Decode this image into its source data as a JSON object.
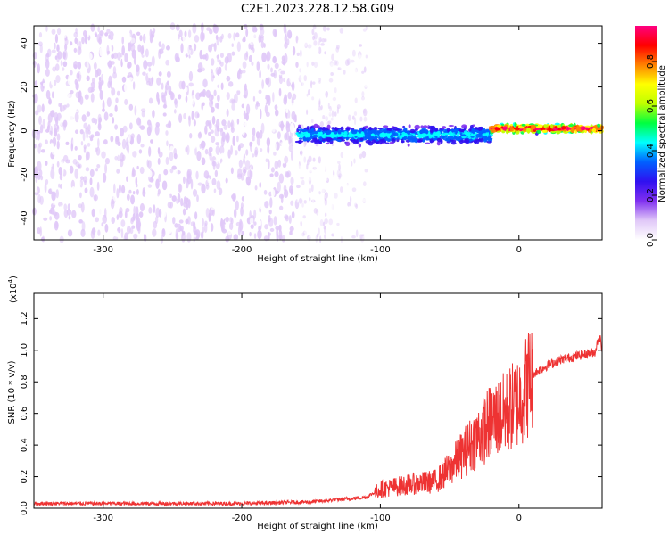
{
  "title": "C2E1.2023.228.12.58.G09",
  "chart_data": [
    {
      "type": "heatmap",
      "xlabel": "Height of straight line (km)",
      "ylabel": "Frequency (Hz)",
      "xlim": [
        -350,
        60
      ],
      "ylim": [
        -50,
        48
      ],
      "xticks": [
        -300,
        -200,
        -100,
        0
      ],
      "yticks": [
        -40,
        -20,
        0,
        20,
        40
      ],
      "colorbar": {
        "label": "Normalized spectral amplitude",
        "range": [
          0.0,
          0.96
        ],
        "ticks": [
          "0.0",
          "0.2",
          "0.4",
          "0.6",
          "0.8"
        ],
        "colors": [
          "#ffffff",
          "#e0c8f8",
          "#8030f0",
          "#3010f0",
          "#0060ff",
          "#00ffff",
          "#00ff40",
          "#c0ff00",
          "#ffff00",
          "#ff8000",
          "#ff0000",
          "#ff0080"
        ]
      },
      "regions": [
        {
          "x_range": [
            -350,
            -160
          ],
          "description": "broadband noise",
          "amplitude": 0.05
        },
        {
          "x_range": [
            -160,
            -110
          ],
          "description": "noise fading",
          "amplitude": 0.04
        },
        {
          "x_range": [
            -160,
            -20
          ],
          "center_frequency": -2,
          "bandwidth": 10,
          "amplitude": 0.25
        },
        {
          "x_range": [
            -20,
            60
          ],
          "center_frequency": 1,
          "bandwidth": 5,
          "amplitude": 0.55
        }
      ]
    },
    {
      "type": "line",
      "xlabel": "Height of straight line (km)",
      "ylabel": "SNR (10 * v/v)",
      "y_multiplier": "(x10",
      "y_multiplier_exp": "4",
      "y_multiplier_close": ")",
      "xlim": [
        -350,
        60
      ],
      "ylim": [
        0,
        1.36
      ],
      "xticks": [
        -300,
        -200,
        -100,
        0
      ],
      "yticks": [
        "0.0",
        "0.2",
        "0.4",
        "0.6",
        "0.8",
        "1.0",
        "1.2"
      ],
      "color": "#ee3333",
      "series": [
        {
          "x": [
            -350,
            -300,
            -250,
            -200,
            -150,
            -110,
            -100,
            -80,
            -60,
            -50,
            -40,
            -30,
            -20,
            -10,
            0,
            10,
            20,
            30,
            40,
            50,
            55,
            58,
            60
          ],
          "y": [
            0.03,
            0.03,
            0.03,
            0.03,
            0.04,
            0.07,
            0.12,
            0.15,
            0.17,
            0.25,
            0.35,
            0.45,
            0.55,
            0.6,
            0.68,
            0.85,
            0.9,
            0.94,
            0.96,
            0.98,
            0.99,
            1.1,
            1.0
          ]
        }
      ]
    }
  ]
}
